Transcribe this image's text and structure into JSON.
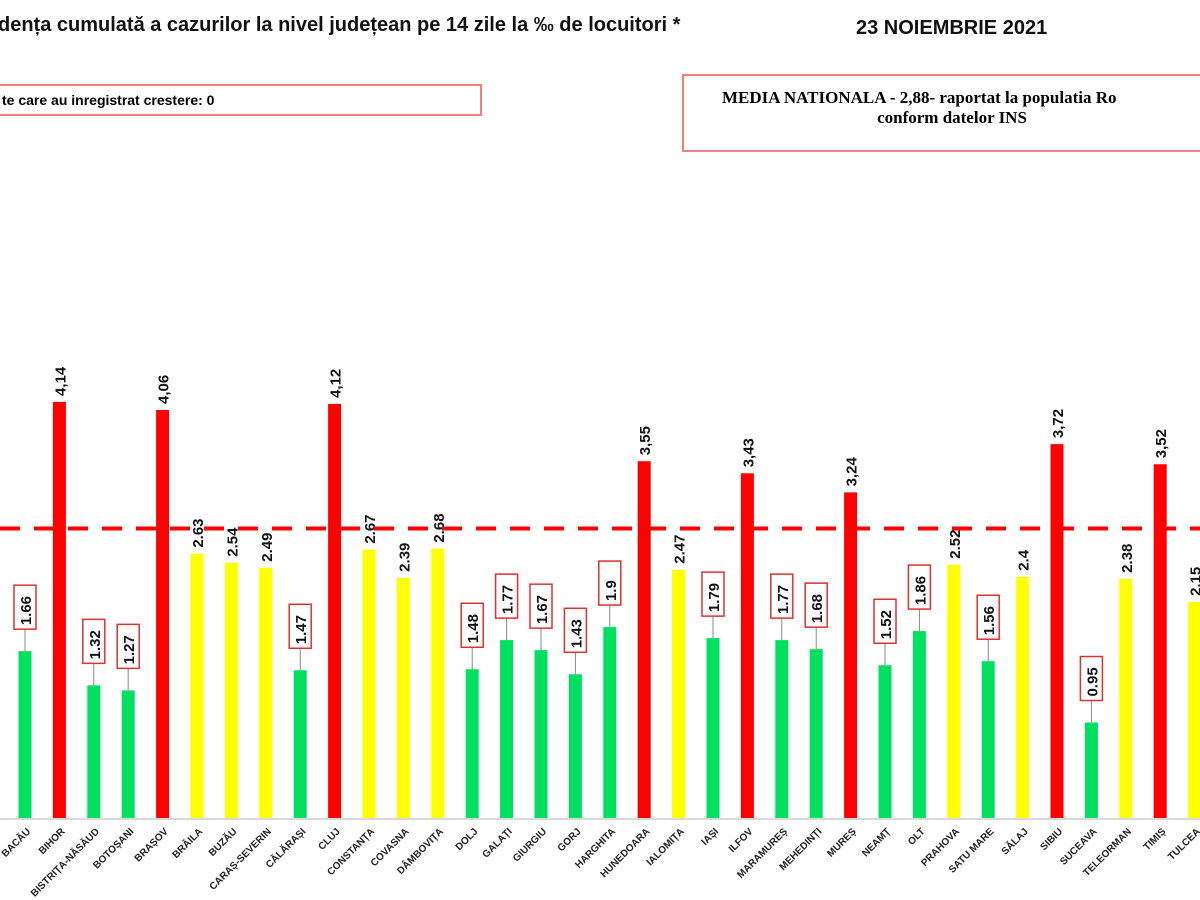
{
  "header": {
    "title": "dența cumulată a cazurilor la nivel județean pe 14 zile la ‰ de locuitori *",
    "date": "23 NOIEMBRIE 2021",
    "increase_box": "te care au inregistrat crestere: 0",
    "national_box_line1": "MEDIA NATIONALA - 2,88-  raportat la populatia Ro",
    "national_box_line2": "conform datelor INS"
  },
  "chart_data": {
    "type": "bar",
    "title": "",
    "ylim": [
      0,
      4.6
    ],
    "reference_line": {
      "value": 2.88,
      "color": "#ff0000",
      "style": "dashed"
    },
    "colors": {
      "green": "#00e060",
      "yellow": "#ffff00",
      "red": "#ff0000"
    },
    "categories": [
      "BACĂU",
      "BIHOR",
      "BISTRIȚA-NĂSĂUD",
      "BOTOȘANI",
      "BRAȘOV",
      "BRĂILA",
      "BUZĂU",
      "CARAȘ-SEVERIN",
      "CĂLĂRAȘI",
      "CLUJ",
      "CONSTANȚA",
      "COVASNA",
      "DÂMBOVIȚA",
      "DOLJ",
      "GALAȚI",
      "GIURGIU",
      "GORJ",
      "HARGHITA",
      "HUNEDOARA",
      "IALOMIȚA",
      "IAȘI",
      "ILFOV",
      "MARAMUREȘ",
      "MEHEDINȚI",
      "MUREȘ",
      "NEAMȚ",
      "OLT",
      "PRAHOVA",
      "SATU MARE",
      "SĂLAJ",
      "SIBIU",
      "SUCEAVA",
      "TELEORMAN",
      "TIMIȘ",
      "TULCEA"
    ],
    "values": [
      1.66,
      4.14,
      1.32,
      1.27,
      4.06,
      2.63,
      2.54,
      2.49,
      1.47,
      4.12,
      2.67,
      2.39,
      2.68,
      1.48,
      1.77,
      1.67,
      1.43,
      1.9,
      3.55,
      2.47,
      1.79,
      3.43,
      1.77,
      1.68,
      3.24,
      1.52,
      1.86,
      2.52,
      1.56,
      2.4,
      3.72,
      0.95,
      2.38,
      3.52,
      2.15
    ],
    "labels": [
      "1.66",
      "4,14",
      "1.32",
      "1.27",
      "4,06",
      "2.63",
      "2.54",
      "2.49",
      "1.47",
      "4,12",
      "2.67",
      "2.39",
      "2.68",
      "1.48",
      "1.77",
      "1.67",
      "1.43",
      "1.9",
      "3,55",
      "2.47",
      "1.79",
      "3,43",
      "1.77",
      "1.68",
      "3,24",
      "1.52",
      "1.86",
      "2.52",
      "1.56",
      "2.4",
      "3,72",
      "0.95",
      "2.38",
      "3,52",
      "2.15"
    ],
    "bar_colors": [
      "green",
      "red",
      "green",
      "green",
      "red",
      "yellow",
      "yellow",
      "yellow",
      "green",
      "red",
      "yellow",
      "yellow",
      "yellow",
      "green",
      "green",
      "green",
      "green",
      "green",
      "red",
      "yellow",
      "green",
      "red",
      "green",
      "green",
      "red",
      "green",
      "green",
      "yellow",
      "green",
      "yellow",
      "red",
      "green",
      "yellow",
      "red",
      "yellow"
    ]
  }
}
